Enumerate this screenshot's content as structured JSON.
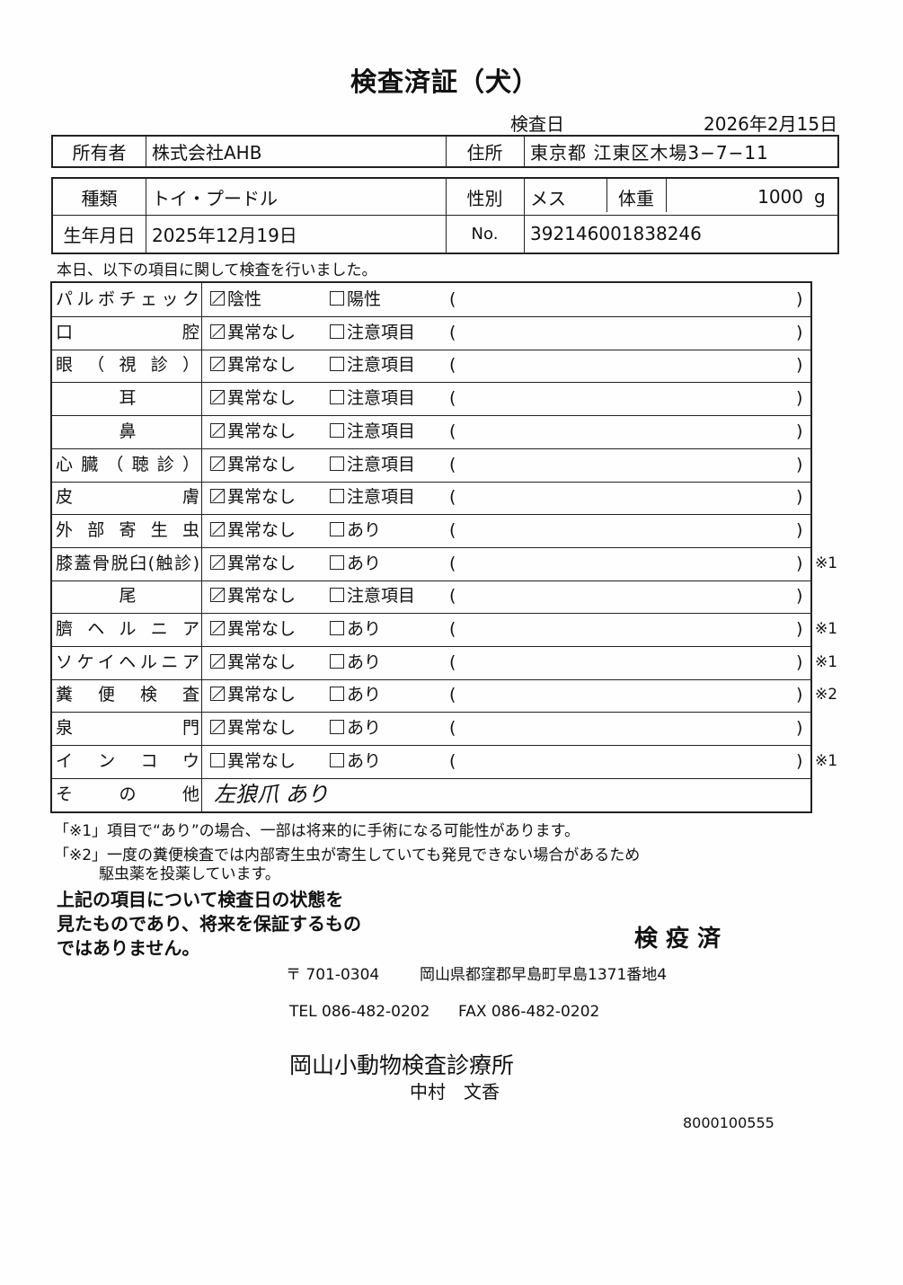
{
  "title": "検査済証（犬）",
  "exam_date_label": "検査日",
  "exam_date": "2026年2月15日",
  "owner": {
    "label": "所有者",
    "value": "株式会社AHB",
    "address_label": "住所",
    "address": "東京都 江東区木場3−7−11"
  },
  "pet": {
    "breed_label": "種類",
    "breed": "トイ・プードル",
    "sex_label": "性別",
    "sex": "メス",
    "weight_label": "体重",
    "weight": "1000",
    "weight_unit": "g",
    "dob_label": "生年月日",
    "dob": "2025年12月19日",
    "no_label": "No.",
    "no": "392146001838246"
  },
  "intro": "本日、以下の項目に関して検査を行いました。",
  "rows": [
    {
      "label": "パルボチェック",
      "opt1": "陰性",
      "opt1_checked": true,
      "opt2": "陽性",
      "opt2_checked": false,
      "note": ""
    },
    {
      "label": "口腔",
      "opt1": "異常なし",
      "opt1_checked": true,
      "opt2": "注意項目",
      "opt2_checked": false,
      "note": ""
    },
    {
      "label": "眼（視診）",
      "opt1": "異常なし",
      "opt1_checked": true,
      "opt2": "注意項目",
      "opt2_checked": false,
      "note": ""
    },
    {
      "label": "耳",
      "opt1": "異常なし",
      "opt1_checked": true,
      "opt2": "注意項目",
      "opt2_checked": false,
      "note": ""
    },
    {
      "label": "鼻",
      "opt1": "異常なし",
      "opt1_checked": true,
      "opt2": "注意項目",
      "opt2_checked": false,
      "note": ""
    },
    {
      "label": "心臓（聴診）",
      "opt1": "異常なし",
      "opt1_checked": true,
      "opt2": "注意項目",
      "opt2_checked": false,
      "note": ""
    },
    {
      "label": "皮膚",
      "opt1": "異常なし",
      "opt1_checked": true,
      "opt2": "注意項目",
      "opt2_checked": false,
      "note": ""
    },
    {
      "label": "外部寄生虫",
      "opt1": "異常なし",
      "opt1_checked": true,
      "opt2": "あり",
      "opt2_checked": false,
      "note": ""
    },
    {
      "label": "膝蓋骨脱臼(触診)",
      "opt1": "異常なし",
      "opt1_checked": true,
      "opt2": "あり",
      "opt2_checked": false,
      "note": "※1"
    },
    {
      "label": "尾",
      "opt1": "異常なし",
      "opt1_checked": true,
      "opt2": "注意項目",
      "opt2_checked": false,
      "note": ""
    },
    {
      "label": "臍ヘルニア",
      "opt1": "異常なし",
      "opt1_checked": true,
      "opt2": "あり",
      "opt2_checked": false,
      "note": "※1"
    },
    {
      "label": "ソケイヘルニア",
      "opt1": "異常なし",
      "opt1_checked": true,
      "opt2": "あり",
      "opt2_checked": false,
      "note": "※1"
    },
    {
      "label": "糞便検査",
      "opt1": "異常なし",
      "opt1_checked": true,
      "opt2": "あり",
      "opt2_checked": false,
      "note": "※2"
    },
    {
      "label": "泉門",
      "opt1": "異常なし",
      "opt1_checked": true,
      "opt2": "あり",
      "opt2_checked": false,
      "note": ""
    },
    {
      "label": "インコウ",
      "opt1": "異常なし",
      "opt1_checked": false,
      "opt2": "あり",
      "opt2_checked": false,
      "note": "※1"
    }
  ],
  "paren_open": "(",
  "paren_close": ")",
  "other": {
    "label": "その他",
    "value": "左狼爪 あり"
  },
  "footnote1": "「※1」項目で“あり”の場合、一部は将来的に手術になる可能性があります。",
  "footnote2a": "「※2」一度の糞便検査では内部寄生虫が寄生していても発見できない場合があるため",
  "footnote2b": "駆虫薬を投薬しています。",
  "disclaimer": [
    "上記の項目について検査日の状態を",
    "見たものであり、将来を保証するもの",
    "ではありません。"
  ],
  "stamp": "検 疫 済",
  "postal": "〒 701-0304",
  "clinic_address": "岡山県都窪郡早島町早島1371番地4",
  "tel": "TEL 086-482-0202",
  "fax": "FAX 086-482-0202",
  "clinic_name": "岡山小動物検査診療所",
  "doctor": "中村　文香",
  "serial": "8000100555"
}
